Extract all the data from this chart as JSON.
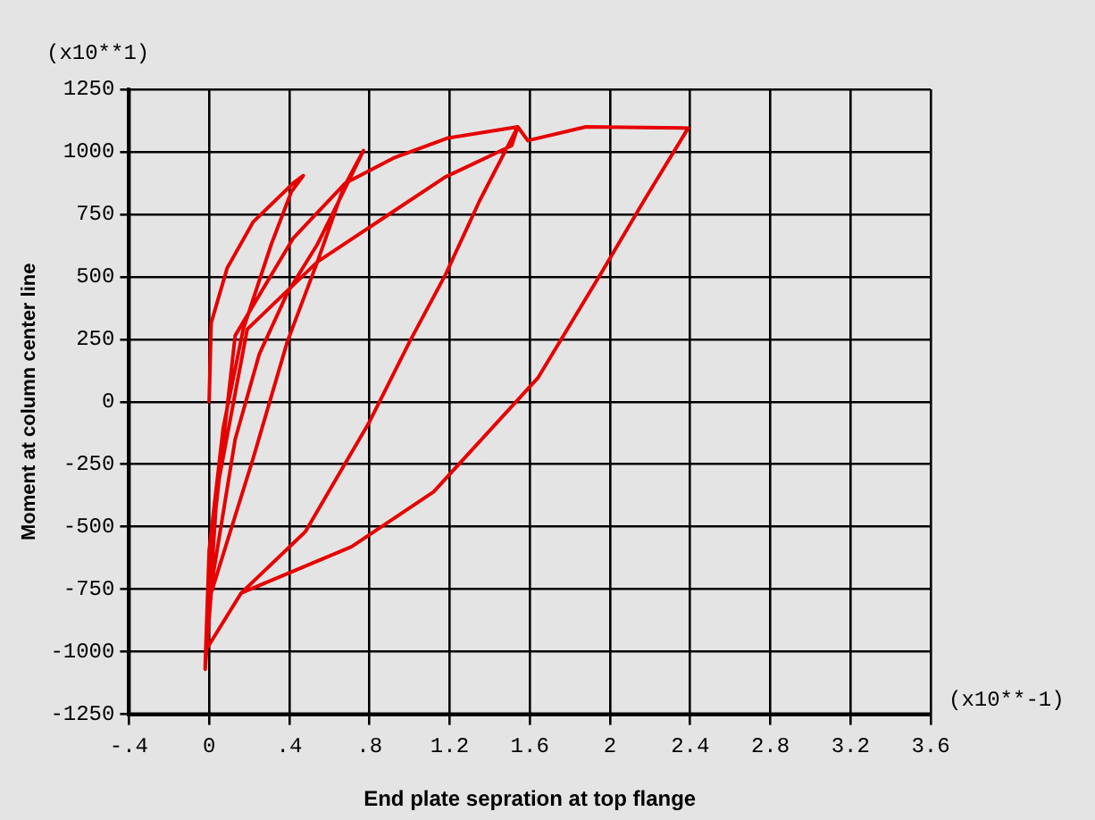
{
  "chart_data": {
    "type": "line",
    "xlabel": "End plate sepration at top flange",
    "ylabel": "Moment at column center line",
    "annotations": [
      "(x10**1)",
      "(x10**-1)"
    ],
    "xlim": [
      -0.4,
      3.6
    ],
    "xticks": [
      {
        "value": -0.4,
        "label": "-.4"
      },
      0,
      {
        "value": 0.4,
        "label": ".4"
      },
      {
        "value": 0.8,
        "label": ".8"
      },
      1.2,
      1.6,
      2,
      2.4,
      2.8,
      3.2,
      3.6
    ],
    "ylim": [
      -1250,
      1250
    ],
    "yticks": [
      -1250,
      -1000,
      -750,
      -500,
      -250,
      0,
      250,
      500,
      750,
      1000,
      1250
    ],
    "grid": true,
    "legend": false,
    "marker": "none",
    "line_style": "solid",
    "series": [
      {
        "color": "#e60000",
        "x": [
          0,
          0.01,
          0.09,
          0.22,
          0.42,
          0.47,
          0.41,
          0.31,
          0.17,
          0.07,
          0,
          -0.02,
          0.01,
          0.13,
          0.25,
          0.39,
          0.54,
          0.67,
          0.77,
          0.67,
          0.54,
          0.39,
          0.22,
          0.01,
          -0.02,
          0.04,
          0.19,
          0.54,
          0.86,
          1.18,
          1.51,
          1.54,
          1.35,
          1.18,
          1.0,
          0.8,
          0.48,
          0.16,
          -0.01,
          0.01,
          0.13,
          0.42,
          0.68,
          0.92,
          1.19,
          1.54,
          1.59,
          1.88,
          2.39,
          2.17,
          1.96,
          1.64,
          1.12,
          0.71,
          0.16,
          -0.01
        ],
        "values": [
          0,
          315,
          535,
          720,
          875,
          905,
          840,
          630,
          290,
          -105,
          -595,
          -1060,
          -740,
          -150,
          190,
          435,
          630,
          840,
          1005,
          855,
          560,
          240,
          -225,
          -765,
          -1070,
          -350,
          290,
          560,
          730,
          900,
          1025,
          1100,
          805,
          510,
          240,
          -80,
          -520,
          -765,
          -985,
          -595,
          265,
          655,
          875,
          975,
          1055,
          1100,
          1045,
          1100,
          1095,
          805,
          520,
          95,
          -360,
          -580,
          -765,
          -985
        ]
      }
    ]
  }
}
